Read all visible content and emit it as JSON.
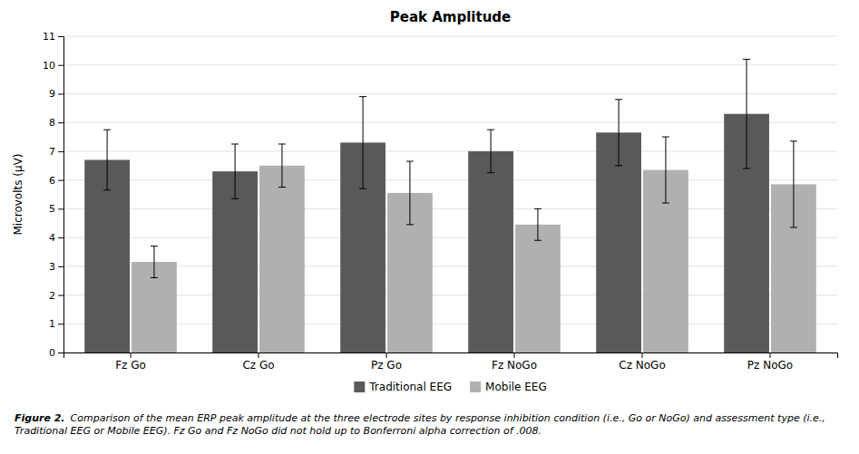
{
  "chart_data": {
    "type": "bar",
    "title": "Peak Amplitude",
    "ylabel": "Microvolts (μV)",
    "categories": [
      "Fz Go",
      "Cz Go",
      "Pz Go",
      "Fz NoGo",
      "Cz NoGo",
      "Pz NoGo"
    ],
    "series": [
      {
        "name": "Traditional EEG",
        "color": "#595959",
        "values": [
          6.7,
          6.3,
          7.3,
          7.0,
          7.65,
          8.3
        ],
        "errors": [
          1.05,
          0.95,
          1.6,
          0.75,
          1.15,
          1.9
        ]
      },
      {
        "name": "Mobile EEG",
        "color": "#b0b0b0",
        "values": [
          3.15,
          6.5,
          5.55,
          4.45,
          6.35,
          5.85
        ],
        "errors": [
          0.55,
          0.75,
          1.1,
          0.55,
          1.15,
          1.5
        ]
      }
    ],
    "ylim": [
      0,
      11
    ],
    "yticks": [
      0,
      1,
      2,
      3,
      4,
      5,
      6,
      7,
      8,
      9,
      10,
      11
    ],
    "grid": true,
    "legend": "bottom",
    "annotations": [
      "Figure 2.",
      "Comparison of the mean ERP peak amplitude at the three electrode sites by response inhibition condition (i.e., Go or NoGo) and assessment type (i.e., Traditional EEG or Mobile EEG). Fz Go and Fz NoGo did not hold up to Bonferroni alpha correction of .008."
    ]
  }
}
